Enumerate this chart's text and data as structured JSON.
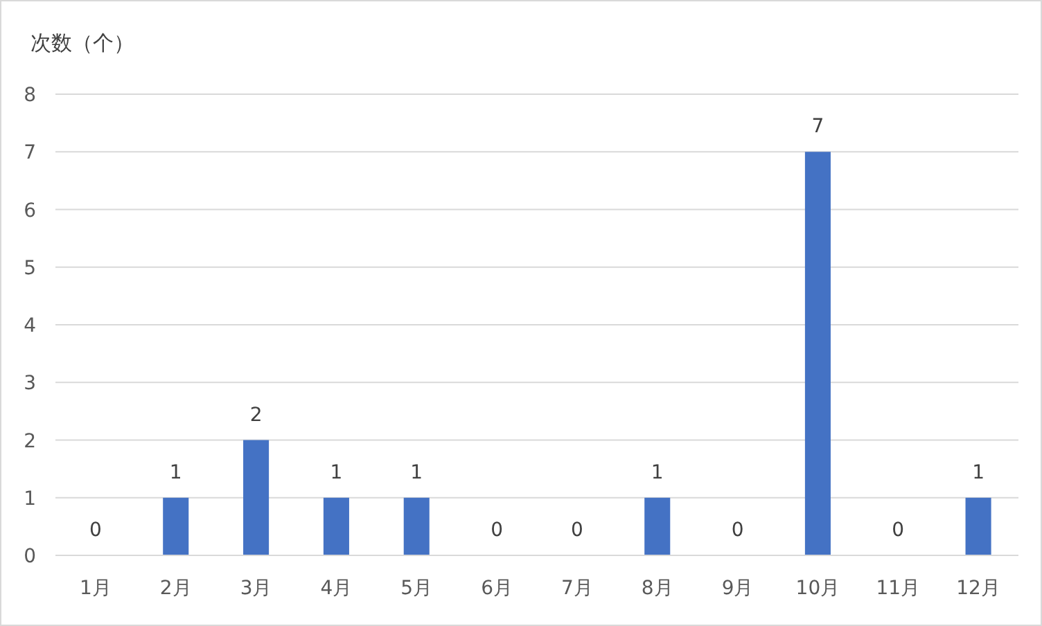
{
  "chart_data": {
    "type": "bar",
    "ylabel": "次数（个）",
    "categories": [
      "1月",
      "2月",
      "3月",
      "4月",
      "5月",
      "6月",
      "7月",
      "8月",
      "9月",
      "10月",
      "11月",
      "12月"
    ],
    "values": [
      0,
      1,
      2,
      1,
      1,
      0,
      0,
      1,
      0,
      7,
      0,
      1
    ],
    "color": "#4472c4",
    "ylim": [
      0,
      8
    ],
    "yticks": [
      0,
      1,
      2,
      3,
      4,
      5,
      6,
      7,
      8
    ],
    "grid": "y",
    "data_labels": true
  }
}
